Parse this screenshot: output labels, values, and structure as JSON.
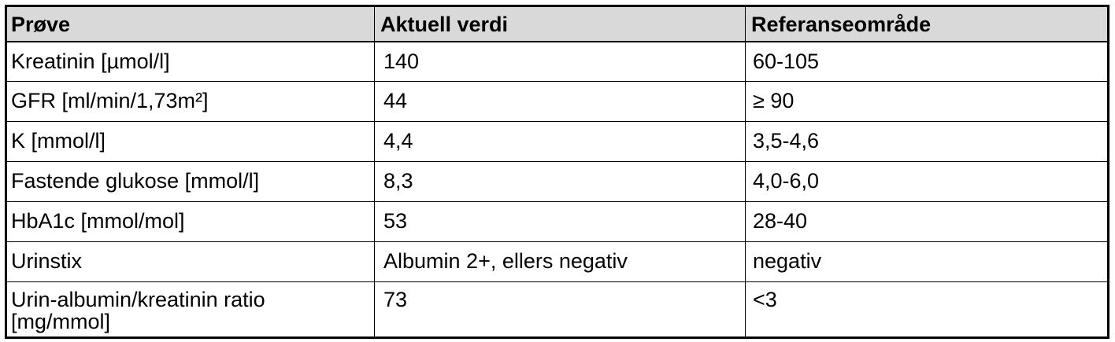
{
  "table": {
    "headers": [
      "Prøve",
      "Aktuell verdi",
      "Referanseområde"
    ],
    "rows": [
      [
        "Kreatinin [µmol/l]",
        "140",
        "60-105"
      ],
      [
        "GFR [ml/min/1,73m²]",
        "44",
        "≥ 90"
      ],
      [
        "K [mmol/l]",
        "4,4",
        "3,5-4,6"
      ],
      [
        "Fastende glukose [mmol/l]",
        "8,3",
        "4,0-6,0"
      ],
      [
        "HbA1c [mmol/mol]",
        "53",
        "28-40"
      ],
      [
        "Urinstix",
        "Albumin 2+, ellers negativ",
        "negativ"
      ],
      [
        "Urin-albumin/kreatinin ratio [mg/mmol]",
        "73",
        "<3"
      ]
    ]
  },
  "colors": {
    "header_background": "#d9d9d9",
    "border": "#000000",
    "text": "#000000"
  }
}
